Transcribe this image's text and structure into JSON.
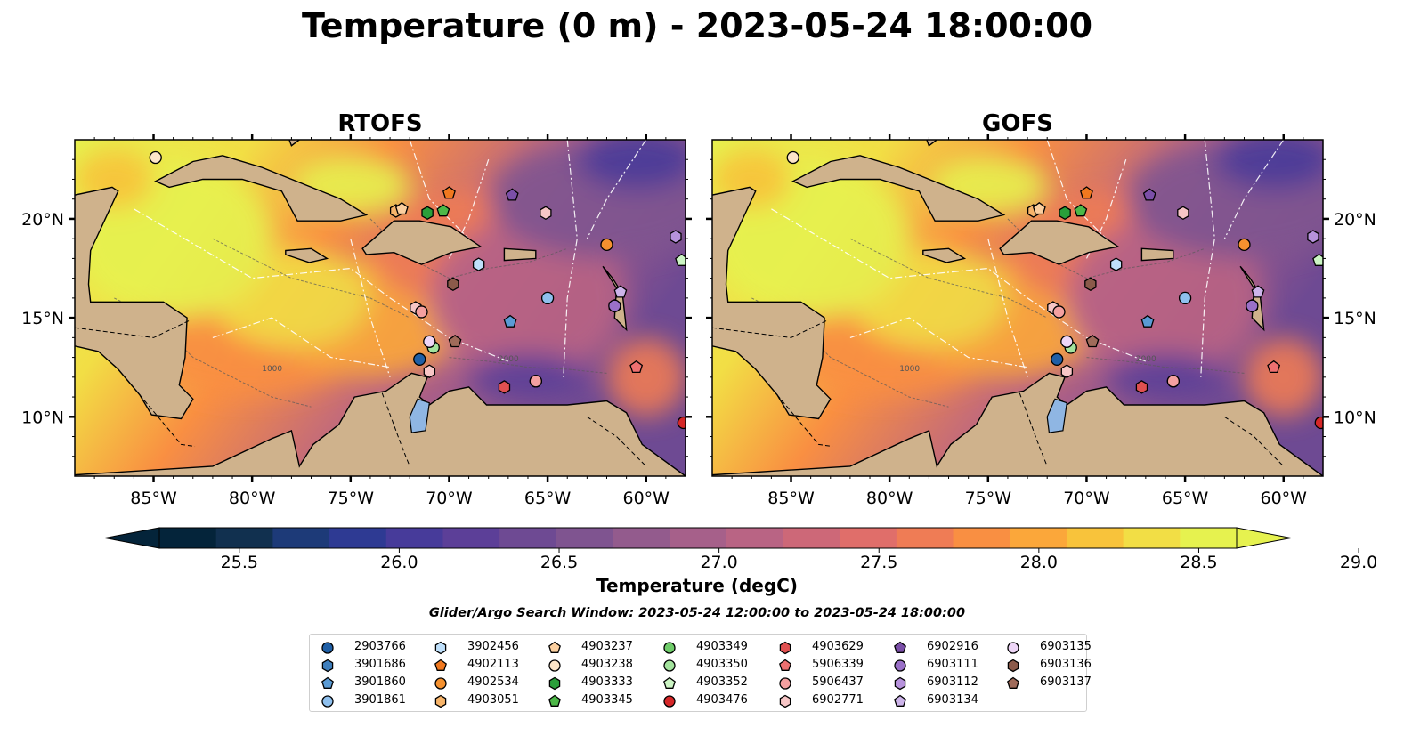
{
  "figure": {
    "title": "Temperature (0 m) - 2023-05-24 18:00:00",
    "search_window": "Glider/Argo Search Window: 2023-05-24 12:00:00 to 2023-05-24 18:00:00"
  },
  "colors": {
    "land": "#cfb28c",
    "lake": "#8fb6e3",
    "river": "#a7bfd6",
    "coast": "#000000"
  },
  "chart_data": [
    {
      "type": "heatmap",
      "title": "RTOFS",
      "xlabel": "",
      "ylabel": "",
      "xlim": [
        -89,
        -58
      ],
      "ylim": [
        7,
        24
      ],
      "xticks": [
        "85°W",
        "80°W",
        "75°W",
        "70°W",
        "65°W",
        "60°W"
      ],
      "yticks": [
        "20°N",
        "15°N",
        "10°N"
      ],
      "contour_labels": [
        "1000",
        "2000"
      ],
      "grid": false
    },
    {
      "type": "heatmap",
      "title": "GOFS",
      "xlabel": "",
      "ylabel": "",
      "xlim": [
        -89,
        -58
      ],
      "ylim": [
        7,
        24
      ],
      "xticks": [
        "85°W",
        "80°W",
        "75°W",
        "70°W",
        "65°W",
        "60°W"
      ],
      "yticks": [
        "20°N",
        "15°N",
        "10°N"
      ],
      "contour_labels": [
        "1000",
        "2000"
      ],
      "grid": false
    }
  ],
  "colorbar": {
    "label": "Temperature (degC)",
    "min": 25.25,
    "max": 29.25,
    "ticks": [
      "25.5",
      "26.0",
      "26.5",
      "27.0",
      "27.5",
      "28.0",
      "28.5",
      "29.0"
    ],
    "tick_values": [
      25.5,
      26.0,
      26.5,
      27.0,
      27.5,
      28.0,
      28.5,
      29.0
    ],
    "bins": [
      "#04243a",
      "#11304f",
      "#1d3a78",
      "#2e3a93",
      "#473b9a",
      "#5c3f98",
      "#6e4a93",
      "#7f5490",
      "#935b8d",
      "#a6608a",
      "#b96484",
      "#cd6878",
      "#e06e6a",
      "#ef7c55",
      "#f98f42",
      "#fba73a",
      "#f8c33b",
      "#f2de45",
      "#e6f24f"
    ]
  },
  "platforms": [
    {
      "id": "2903766",
      "marker": "circle",
      "color": "#1f5fa6",
      "lon": -71.5,
      "lat": 12.9
    },
    {
      "id": "3901686",
      "marker": "hexagon",
      "color": "#3f7fbd",
      "lon": -61.6,
      "lat": 15.6
    },
    {
      "id": "3901860",
      "marker": "pentagon",
      "color": "#5a9bd5",
      "lon": -66.9,
      "lat": 14.8
    },
    {
      "id": "3901861",
      "marker": "circle",
      "color": "#8fc0ee",
      "lon": -65.0,
      "lat": 16.0
    },
    {
      "id": "3902456",
      "marker": "hexagon",
      "color": "#bfe0fb",
      "lon": -68.5,
      "lat": 17.7
    },
    {
      "id": "4902113",
      "marker": "pentagon",
      "color": "#f0781f",
      "lon": -70.0,
      "lat": 21.3
    },
    {
      "id": "4902534",
      "marker": "circle",
      "color": "#f5912f",
      "lon": -62.0,
      "lat": 18.7
    },
    {
      "id": "4903051",
      "marker": "hexagon",
      "color": "#f7b46a",
      "lon": -72.7,
      "lat": 20.4
    },
    {
      "id": "4903237",
      "marker": "pentagon",
      "color": "#fbcf9f",
      "lon": -72.4,
      "lat": 20.5
    },
    {
      "id": "4903238",
      "marker": "circle",
      "color": "#fde5c8",
      "lon": -84.9,
      "lat": 23.1
    },
    {
      "id": "4903333",
      "marker": "hexagon",
      "color": "#2a9f3a",
      "lon": -71.1,
      "lat": 20.3
    },
    {
      "id": "4903345",
      "marker": "pentagon",
      "color": "#4db848",
      "lon": -70.3,
      "lat": 20.4
    },
    {
      "id": "4903349",
      "marker": "circle",
      "color": "#6fcc6a",
      "lon": -65.6,
      "lat": 11.8
    },
    {
      "id": "4903350",
      "marker": "circle",
      "color": "#a3e39d",
      "lon": -70.8,
      "lat": 13.5
    },
    {
      "id": "4903352",
      "marker": "pentagon",
      "color": "#ccf5c4",
      "lon": -58.2,
      "lat": 17.9
    },
    {
      "id": "4903476",
      "marker": "circle",
      "color": "#d62728",
      "lon": -58.1,
      "lat": 9.7
    },
    {
      "id": "4903629",
      "marker": "hexagon",
      "color": "#e05050",
      "lon": -67.2,
      "lat": 11.5
    },
    {
      "id": "5906339",
      "marker": "pentagon",
      "color": "#ee7070",
      "lon": -60.5,
      "lat": 12.5
    },
    {
      "id": "5906437",
      "marker": "circle",
      "color": "#f4a0a0",
      "lon": -65.6,
      "lat": 11.8
    },
    {
      "id": "6902771",
      "marker": "hexagon",
      "color": "#f7c6c6",
      "lon": -65.1,
      "lat": 20.3
    },
    {
      "id": "6902916",
      "marker": "pentagon",
      "color": "#7b4fa8",
      "lon": -66.8,
      "lat": 21.2
    },
    {
      "id": "6903111",
      "marker": "circle",
      "color": "#9a70c8",
      "lon": -61.6,
      "lat": 15.6
    },
    {
      "id": "6903112",
      "marker": "hexagon",
      "color": "#b792dc",
      "lon": -58.5,
      "lat": 19.1
    },
    {
      "id": "6903134",
      "marker": "pentagon",
      "color": "#cdb4ea",
      "lon": -61.3,
      "lat": 16.3
    },
    {
      "id": "6903135",
      "marker": "circle",
      "color": "#eed6f7",
      "lon": -71.0,
      "lat": 13.8
    },
    {
      "id": "6903136",
      "marker": "hexagon",
      "color": "#8b5a4a",
      "lon": -69.8,
      "lat": 16.7
    },
    {
      "id": "6903137",
      "marker": "pentagon",
      "color": "#a06b5a",
      "lon": -69.7,
      "lat": 13.8
    }
  ],
  "extra_markers": [
    {
      "marker": "hexagon",
      "color": "#f7c6c6",
      "lon": -71.7,
      "lat": 15.5
    },
    {
      "marker": "circle",
      "color": "#f4a0a0",
      "lon": -71.4,
      "lat": 15.3
    },
    {
      "marker": "hexagon",
      "color": "#f7c6c6",
      "lon": -71.0,
      "lat": 12.3
    }
  ]
}
